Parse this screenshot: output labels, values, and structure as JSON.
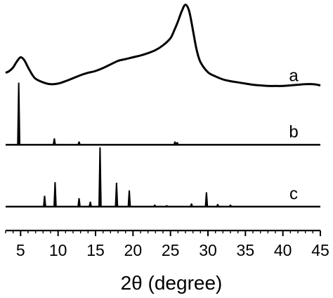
{
  "chart_data": {
    "type": "line",
    "title": "",
    "xlabel": "2θ (degree)",
    "ylabel": "",
    "xlim": [
      3,
      45
    ],
    "x_ticks": [
      "5",
      "10",
      "15",
      "20",
      "25",
      "30",
      "35",
      "40",
      "45"
    ],
    "grid": false,
    "legend": "none",
    "stacked_offsets": true,
    "series": [
      {
        "name": "a",
        "x": [
          3,
          3.5,
          4,
          4.5,
          5,
          5.5,
          6,
          6.5,
          7,
          8,
          9,
          10,
          11,
          12,
          13,
          14,
          15,
          16,
          17,
          18,
          19,
          20,
          21,
          22,
          23,
          24,
          25,
          25.5,
          26,
          26.5,
          27,
          27.5,
          28,
          28.5,
          29,
          30,
          31,
          32,
          33,
          34,
          35,
          36,
          37,
          38,
          39,
          40,
          41,
          42,
          43,
          44,
          45
        ],
        "y": [
          0.24,
          0.27,
          0.33,
          0.43,
          0.5,
          0.45,
          0.33,
          0.22,
          0.14,
          0.08,
          0.05,
          0.06,
          0.1,
          0.15,
          0.2,
          0.24,
          0.27,
          0.32,
          0.38,
          0.44,
          0.47,
          0.5,
          0.53,
          0.57,
          0.62,
          0.7,
          0.82,
          0.95,
          1.1,
          1.27,
          1.38,
          1.27,
          0.95,
          0.62,
          0.42,
          0.25,
          0.18,
          0.13,
          0.1,
          0.08,
          0.06,
          0.04,
          0.03,
          0.02,
          0.02,
          0.02,
          0.03,
          0.04,
          0.05,
          0.05,
          0.03
        ]
      },
      {
        "name": "b",
        "x": [
          4.75,
          9.5,
          12.8,
          25.6,
          25.9
        ],
        "y": [
          1.0,
          0.1,
          0.05,
          0.05,
          0.04
        ]
      },
      {
        "name": "c",
        "x": [
          8.2,
          9.6,
          12.8,
          14.3,
          15.6,
          17.8,
          19.5,
          22.9,
          24.5,
          27.8,
          29.8,
          31.3,
          33.0
        ],
        "y": [
          0.18,
          0.41,
          0.14,
          0.08,
          1.0,
          0.4,
          0.27,
          0.03,
          0.02,
          0.05,
          0.24,
          0.04,
          0.03
        ]
      }
    ]
  }
}
